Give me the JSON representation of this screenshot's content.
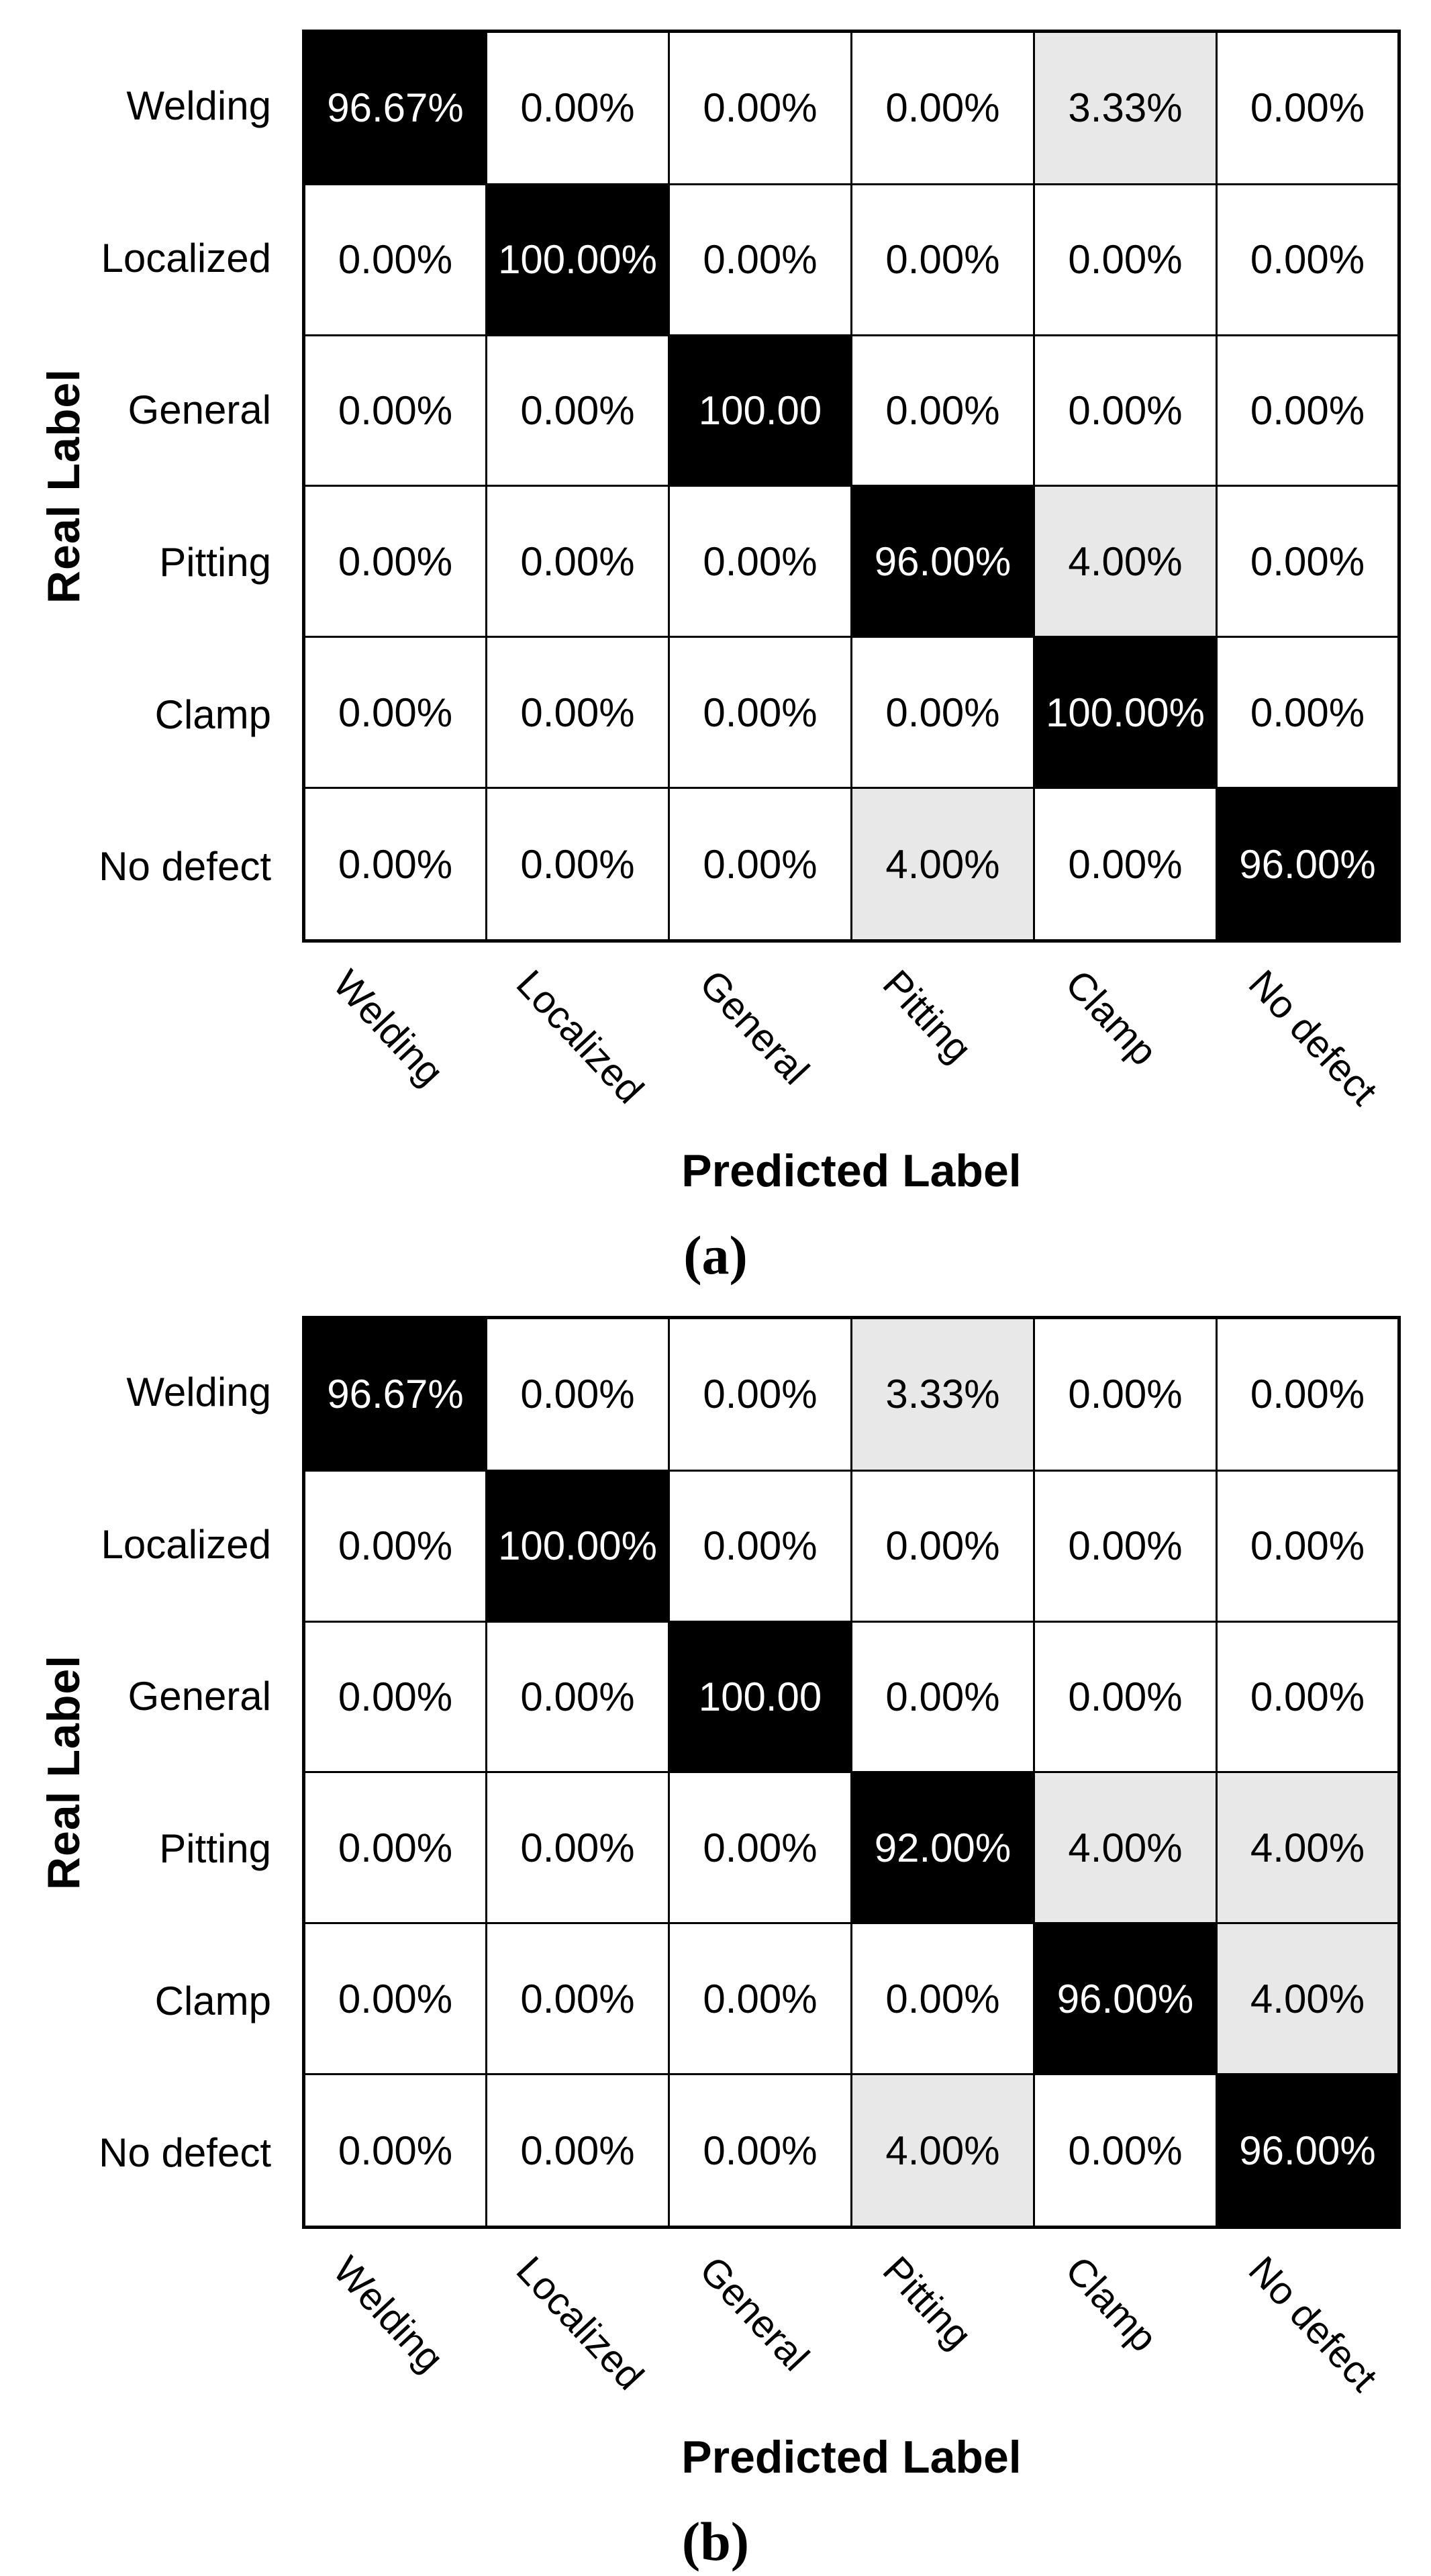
{
  "colors": {
    "diagonal_bg": "#000000",
    "diagonal_text": "#ffffff",
    "misclassified_bg": "#e8e8e8",
    "zero_bg": "#ffffff",
    "grid_line": "#000000",
    "text": "#000000"
  },
  "chart_data": [
    {
      "type": "heatmap",
      "panel": "a",
      "caption": "(a)",
      "xlabel": "Predicted Label",
      "ylabel": "Real Label",
      "x_categories": [
        "Welding",
        "Localized",
        "General",
        "Pitting",
        "Clamp",
        "No defect"
      ],
      "y_categories": [
        "Welding",
        "Localized",
        "General",
        "Pitting",
        "Clamp",
        "No defect"
      ],
      "values_percent": [
        [
          96.67,
          0.0,
          0.0,
          0.0,
          3.33,
          0.0
        ],
        [
          0.0,
          100.0,
          0.0,
          0.0,
          0.0,
          0.0
        ],
        [
          0.0,
          0.0,
          100.0,
          0.0,
          0.0,
          0.0
        ],
        [
          0.0,
          0.0,
          0.0,
          96.0,
          4.0,
          0.0
        ],
        [
          0.0,
          0.0,
          0.0,
          0.0,
          100.0,
          0.0
        ],
        [
          0.0,
          0.0,
          0.0,
          4.0,
          0.0,
          96.0
        ]
      ],
      "cell_text": [
        [
          "96.67%",
          "0.00%",
          "0.00%",
          "0.00%",
          "3.33%",
          "0.00%"
        ],
        [
          "0.00%",
          "100.00%",
          "0.00%",
          "0.00%",
          "0.00%",
          "0.00%"
        ],
        [
          "0.00%",
          "0.00%",
          "100.00",
          "0.00%",
          "0.00%",
          "0.00%"
        ],
        [
          "0.00%",
          "0.00%",
          "0.00%",
          "96.00%",
          "4.00%",
          "0.00%"
        ],
        [
          "0.00%",
          "0.00%",
          "0.00%",
          "0.00%",
          "100.00%",
          "0.00%"
        ],
        [
          "0.00%",
          "0.00%",
          "0.00%",
          "4.00%",
          "0.00%",
          "96.00%"
        ]
      ]
    },
    {
      "type": "heatmap",
      "panel": "b",
      "caption": "(b)",
      "xlabel": "Predicted Label",
      "ylabel": "Real Label",
      "x_categories": [
        "Welding",
        "Localized",
        "General",
        "Pitting",
        "Clamp",
        "No defect"
      ],
      "y_categories": [
        "Welding",
        "Localized",
        "General",
        "Pitting",
        "Clamp",
        "No defect"
      ],
      "values_percent": [
        [
          96.67,
          0.0,
          0.0,
          3.33,
          0.0,
          0.0
        ],
        [
          0.0,
          100.0,
          0.0,
          0.0,
          0.0,
          0.0
        ],
        [
          0.0,
          0.0,
          100.0,
          0.0,
          0.0,
          0.0
        ],
        [
          0.0,
          0.0,
          0.0,
          92.0,
          4.0,
          4.0
        ],
        [
          0.0,
          0.0,
          0.0,
          0.0,
          96.0,
          4.0
        ],
        [
          0.0,
          0.0,
          0.0,
          4.0,
          0.0,
          96.0
        ]
      ],
      "cell_text": [
        [
          "96.67%",
          "0.00%",
          "0.00%",
          "3.33%",
          "0.00%",
          "0.00%"
        ],
        [
          "0.00%",
          "100.00%",
          "0.00%",
          "0.00%",
          "0.00%",
          "0.00%"
        ],
        [
          "0.00%",
          "0.00%",
          "100.00",
          "0.00%",
          "0.00%",
          "0.00%"
        ],
        [
          "0.00%",
          "0.00%",
          "0.00%",
          "92.00%",
          "4.00%",
          "4.00%"
        ],
        [
          "0.00%",
          "0.00%",
          "0.00%",
          "0.00%",
          "96.00%",
          "4.00%"
        ],
        [
          "0.00%",
          "0.00%",
          "0.00%",
          "4.00%",
          "0.00%",
          "96.00%"
        ]
      ]
    }
  ]
}
